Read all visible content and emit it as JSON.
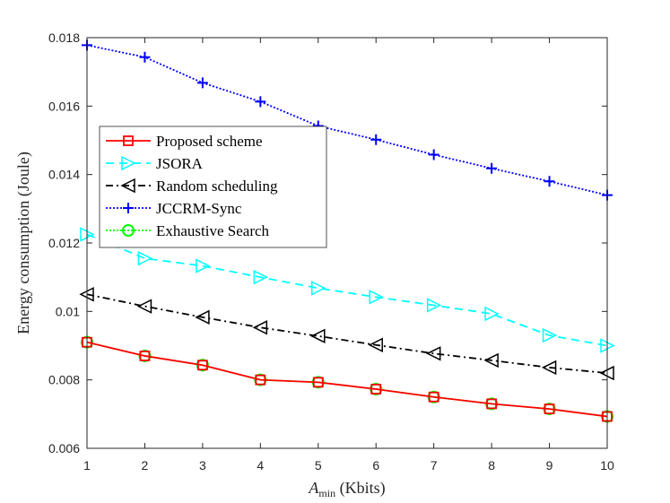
{
  "chart_data": {
    "type": "line",
    "title": "",
    "xlabel_main": "A",
    "xlabel_sub": "min",
    "xlabel_rest": " (Kbits)",
    "ylabel": "Energy consumption (Joule)",
    "xlim": [
      1,
      10
    ],
    "ylim": [
      0.006,
      0.018
    ],
    "xticks": [
      1,
      2,
      3,
      4,
      5,
      6,
      7,
      8,
      9,
      10
    ],
    "xtick_labels": [
      "1",
      "2",
      "3",
      "4",
      "5",
      "6",
      "7",
      "8",
      "9",
      "10"
    ],
    "yticks": [
      0.006,
      0.008,
      0.01,
      0.012,
      0.014,
      0.016,
      0.018
    ],
    "ytick_labels": [
      "0.006",
      "0.008",
      "0.01",
      "0.012",
      "0.014",
      "0.016",
      "0.018"
    ],
    "grid": false,
    "legend_position": "upper-left",
    "x": [
      1,
      2,
      3,
      4,
      5,
      6,
      7,
      8,
      9,
      10
    ],
    "series": [
      {
        "name": "Proposed scheme",
        "color": "#ff0000",
        "dash": "solid",
        "marker": "square",
        "values": [
          0.0091,
          0.0087,
          0.00843,
          0.008,
          0.00793,
          0.00773,
          0.0075,
          0.0073,
          0.00715,
          0.00693
        ]
      },
      {
        "name": "JSORA",
        "color": "#00ffff",
        "dash": "dashed",
        "marker": "triangle-right",
        "values": [
          0.01225,
          0.01155,
          0.01133,
          0.011,
          0.01068,
          0.01042,
          0.01018,
          0.00993,
          0.0093,
          0.009
        ]
      },
      {
        "name": "Random scheduling",
        "color": "#000000",
        "dash": "dashdot",
        "marker": "triangle-left",
        "values": [
          0.0105,
          0.01015,
          0.00983,
          0.00953,
          0.00928,
          0.00902,
          0.00877,
          0.00857,
          0.00836,
          0.0082
        ]
      },
      {
        "name": "JCCRM-Sync",
        "color": "#0000ff",
        "dash": "dotted",
        "marker": "plus",
        "values": [
          0.01778,
          0.01743,
          0.01668,
          0.01613,
          0.01542,
          0.01502,
          0.01458,
          0.01418,
          0.0138,
          0.0134
        ]
      },
      {
        "name": "Exhaustive Search",
        "color": "#00ff00",
        "dash": "dotted",
        "marker": "circle",
        "values": [
          0.0091,
          0.0087,
          0.00843,
          0.008,
          0.00793,
          0.00773,
          0.0075,
          0.0073,
          0.00715,
          0.00693
        ]
      }
    ]
  }
}
